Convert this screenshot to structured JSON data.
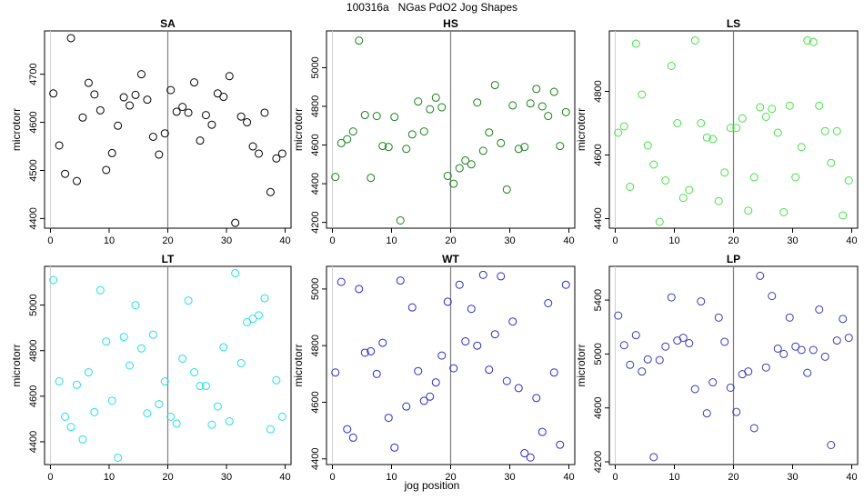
{
  "figure": {
    "title": "100316a   NGas PdO2 Jog Shapes",
    "xlabel": "jog position"
  },
  "chart_data": [
    {
      "type": "scatter",
      "title": "SA",
      "ylabel": "microtorr",
      "color": "#000000",
      "xlim": [
        -1,
        41
      ],
      "ylim": [
        4380,
        4790
      ],
      "xticks": [
        0,
        10,
        20,
        30,
        40
      ],
      "yticks": [
        4400,
        4500,
        4600,
        4700
      ],
      "vline": 20,
      "x": [
        0.5,
        1.5,
        2.5,
        3.5,
        4.5,
        5.5,
        6.5,
        7.5,
        8.5,
        9.5,
        10.5,
        11.5,
        12.5,
        13.5,
        14.5,
        15.5,
        16.5,
        17.5,
        18.5,
        19.5,
        20.5,
        21.5,
        22.5,
        23.5,
        24.5,
        25.5,
        26.5,
        27.5,
        28.5,
        29.5,
        30.5,
        31.5,
        32.5,
        33.5,
        34.5,
        35.5,
        36.5,
        37.5,
        38.5,
        39.5
      ],
      "y": [
        4660,
        4552,
        4493,
        4775,
        4478,
        4610,
        4682,
        4658,
        4625,
        4501,
        4536,
        4593,
        4652,
        4635,
        4657,
        4700,
        4647,
        4570,
        4533,
        4577,
        4667,
        4622,
        4632,
        4620,
        4683,
        4562,
        4615,
        4595,
        4660,
        4653,
        4696,
        4391,
        4612,
        4600,
        4550,
        4535,
        4620,
        4455,
        4525,
        4535
      ]
    },
    {
      "type": "scatter",
      "title": "HS",
      "ylabel": "microtorr",
      "color": "#1a7f1a",
      "xlim": [
        -1,
        41
      ],
      "ylim": [
        4170,
        5190
      ],
      "xticks": [
        0,
        10,
        20,
        30,
        40
      ],
      "yticks": [
        4200,
        4400,
        4600,
        4800,
        5000
      ],
      "vline": 20,
      "x": [
        0.5,
        1.5,
        2.5,
        3.5,
        4.5,
        5.5,
        6.5,
        7.5,
        8.5,
        9.5,
        10.5,
        11.5,
        12.5,
        13.5,
        14.5,
        15.5,
        16.5,
        17.5,
        18.5,
        19.5,
        20.5,
        21.5,
        22.5,
        23.5,
        24.5,
        25.5,
        26.5,
        27.5,
        28.5,
        29.5,
        30.5,
        31.5,
        32.5,
        33.5,
        34.5,
        35.5,
        36.5,
        37.5,
        38.5,
        39.5
      ],
      "y": [
        4435,
        4610,
        4630,
        4670,
        5140,
        4755,
        4430,
        4750,
        4595,
        4590,
        4745,
        4210,
        4580,
        4655,
        4825,
        4670,
        4785,
        4845,
        4795,
        4440,
        4400,
        4480,
        4520,
        4500,
        4820,
        4570,
        4665,
        4910,
        4610,
        4370,
        4805,
        4580,
        4590,
        4815,
        4890,
        4800,
        4750,
        4875,
        4595,
        4770
      ]
    },
    {
      "type": "scatter",
      "title": "LS",
      "ylabel": "microtorr",
      "color": "#44e044",
      "xlim": [
        -1,
        41
      ],
      "ylim": [
        4370,
        4990
      ],
      "xticks": [
        0,
        10,
        20,
        30,
        40
      ],
      "yticks": [
        4400,
        4600,
        4800
      ],
      "vline": 20,
      "x": [
        0.5,
        1.5,
        2.5,
        3.5,
        4.5,
        5.5,
        6.5,
        7.5,
        8.5,
        9.5,
        10.5,
        11.5,
        12.5,
        13.5,
        14.5,
        15.5,
        16.5,
        17.5,
        18.5,
        19.5,
        20.5,
        21.5,
        22.5,
        23.5,
        24.5,
        25.5,
        26.5,
        27.5,
        28.5,
        29.5,
        30.5,
        31.5,
        32.5,
        33.5,
        34.5,
        35.5,
        36.5,
        37.5,
        38.5,
        39.5
      ],
      "y": [
        4670,
        4690,
        4500,
        4950,
        4790,
        4630,
        4570,
        4390,
        4520,
        4880,
        4700,
        4465,
        4490,
        4960,
        4700,
        4655,
        4650,
        4455,
        4545,
        4685,
        4685,
        4715,
        4425,
        4530,
        4750,
        4720,
        4745,
        4670,
        4420,
        4755,
        4530,
        4625,
        4960,
        4955,
        4755,
        4675,
        4575,
        4675,
        4410,
        4520
      ]
    },
    {
      "type": "scatter",
      "title": "LT",
      "ylabel": "microtorr",
      "color": "#22e0e0",
      "xlim": [
        -1,
        41
      ],
      "ylim": [
        4300,
        5170
      ],
      "xticks": [
        0,
        10,
        20,
        30,
        40
      ],
      "yticks": [
        4400,
        4600,
        4800,
        5000
      ],
      "vline": 20,
      "x": [
        0.5,
        1.5,
        2.5,
        3.5,
        4.5,
        5.5,
        6.5,
        7.5,
        8.5,
        9.5,
        10.5,
        11.5,
        12.5,
        13.5,
        14.5,
        15.5,
        16.5,
        17.5,
        18.5,
        19.5,
        20.5,
        21.5,
        22.5,
        23.5,
        24.5,
        25.5,
        26.5,
        27.5,
        28.5,
        29.5,
        30.5,
        31.5,
        32.5,
        33.5,
        34.5,
        35.5,
        36.5,
        37.5,
        38.5,
        39.5
      ],
      "y": [
        5110,
        4665,
        4510,
        4465,
        4650,
        4410,
        4705,
        4530,
        5065,
        4840,
        4580,
        4330,
        4860,
        4735,
        5000,
        4810,
        4525,
        4870,
        4565,
        4665,
        4510,
        4480,
        4765,
        5020,
        4705,
        4645,
        4645,
        4475,
        4555,
        4815,
        4490,
        5140,
        4745,
        4925,
        4940,
        4955,
        5030,
        4455,
        4670,
        4510
      ]
    },
    {
      "type": "scatter",
      "title": "WT",
      "ylabel": "microtorr",
      "color": "#2a2ac8",
      "xlim": [
        -1,
        41
      ],
      "ylim": [
        4380,
        5080
      ],
      "xticks": [
        0,
        10,
        20,
        30,
        40
      ],
      "yticks": [
        4400,
        4600,
        4800,
        5000
      ],
      "vline": 20,
      "x": [
        0.5,
        1.5,
        2.5,
        3.5,
        4.5,
        5.5,
        6.5,
        7.5,
        8.5,
        9.5,
        10.5,
        11.5,
        12.5,
        13.5,
        14.5,
        15.5,
        16.5,
        17.5,
        18.5,
        19.5,
        20.5,
        21.5,
        22.5,
        23.5,
        24.5,
        25.5,
        26.5,
        27.5,
        28.5,
        29.5,
        30.5,
        31.5,
        32.5,
        33.5,
        34.5,
        35.5,
        36.5,
        37.5,
        38.5,
        39.5
      ],
      "y": [
        4705,
        5025,
        4505,
        4475,
        5000,
        4775,
        4780,
        4700,
        4810,
        4545,
        4440,
        5030,
        4585,
        4935,
        4710,
        4605,
        4620,
        4670,
        4765,
        4955,
        4720,
        5015,
        4815,
        4930,
        4800,
        5050,
        4715,
        4840,
        5045,
        4675,
        4885,
        4650,
        4420,
        4405,
        4615,
        4495,
        4950,
        4705,
        4450,
        5015
      ]
    },
    {
      "type": "scatter",
      "title": "LP",
      "ylabel": "microtorr",
      "color": "#3a3ab0",
      "xlim": [
        -1,
        41
      ],
      "ylim": [
        4180,
        5650
      ],
      "xticks": [
        0,
        10,
        20,
        30,
        40
      ],
      "yticks": [
        4200,
        4600,
        5000,
        5400
      ],
      "vline": 20,
      "x": [
        0.5,
        1.5,
        2.5,
        3.5,
        4.5,
        5.5,
        6.5,
        7.5,
        8.5,
        9.5,
        10.5,
        11.5,
        12.5,
        13.5,
        14.5,
        15.5,
        16.5,
        17.5,
        18.5,
        19.5,
        20.5,
        21.5,
        22.5,
        23.5,
        24.5,
        25.5,
        26.5,
        27.5,
        28.5,
        29.5,
        30.5,
        31.5,
        32.5,
        33.5,
        34.5,
        35.5,
        36.5,
        37.5,
        38.5,
        39.5
      ],
      "y": [
        5285,
        5065,
        4920,
        5140,
        4870,
        4960,
        4235,
        4955,
        5055,
        5420,
        5100,
        5120,
        5080,
        4740,
        5390,
        4560,
        4790,
        5270,
        5090,
        4750,
        4570,
        4850,
        4870,
        4450,
        5580,
        4900,
        5430,
        5040,
        5000,
        5270,
        5055,
        5030,
        4860,
        5030,
        5330,
        4980,
        4325,
        5100,
        5260,
        5120
      ]
    }
  ]
}
